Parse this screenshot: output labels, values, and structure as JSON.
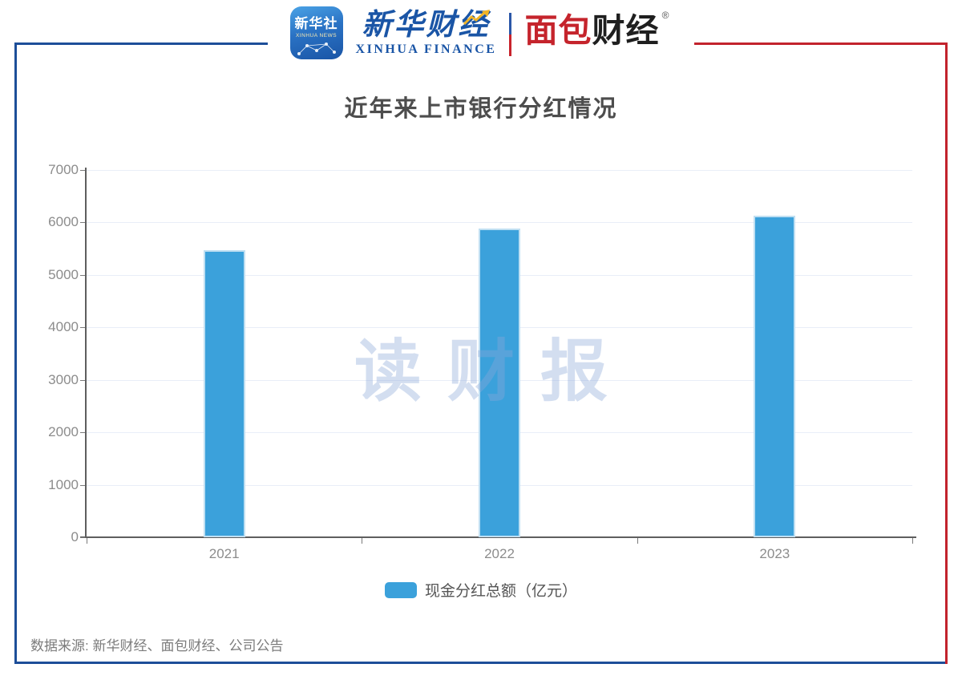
{
  "header": {
    "xinhua_icon": {
      "line1": "新华社",
      "line2": "XINHUA NEWS"
    },
    "xinhua_finance": {
      "cn": "新华财经",
      "en": "XINHUA FINANCE"
    },
    "mianbao": {
      "red_part": "面包",
      "black_part": "财经",
      "reg_mark": "®"
    }
  },
  "chart_title": "近年来上市银行分红情况",
  "watermark": "读财报",
  "legend": {
    "label": "现金分红总额（亿元）"
  },
  "footer": {
    "source": "数据来源: 新华财经、面包财经、公司公告"
  },
  "colors": {
    "bar": "#3BA1DB",
    "bar_edge": "#BFDFF2",
    "border_blue": "#1D4E99",
    "border_red": "#C2232D",
    "grid": "#E9EEF8",
    "axis": "#5E5E5E",
    "tick_label": "#8C8C8C",
    "title": "#4D4D4D",
    "watermark": "#8CA7D8",
    "logo_blue": "#1A55A6",
    "logo_red": "#C5242C"
  },
  "chart_data": {
    "type": "bar",
    "title": "近年来上市银行分红情况",
    "categories": [
      "2021",
      "2022",
      "2023"
    ],
    "series": [
      {
        "name": "现金分红总额（亿元）",
        "values": [
          5470,
          5880,
          6130
        ],
        "color": "#3BA1DB"
      }
    ],
    "xlabel": "",
    "ylabel": "",
    "ylim": [
      0,
      7000
    ],
    "ytick_interval": 1000,
    "grid": true,
    "legend_position": "bottom",
    "watermark": "读财报",
    "source_note": "数据来源: 新华财经、面包财经、公司公告"
  }
}
